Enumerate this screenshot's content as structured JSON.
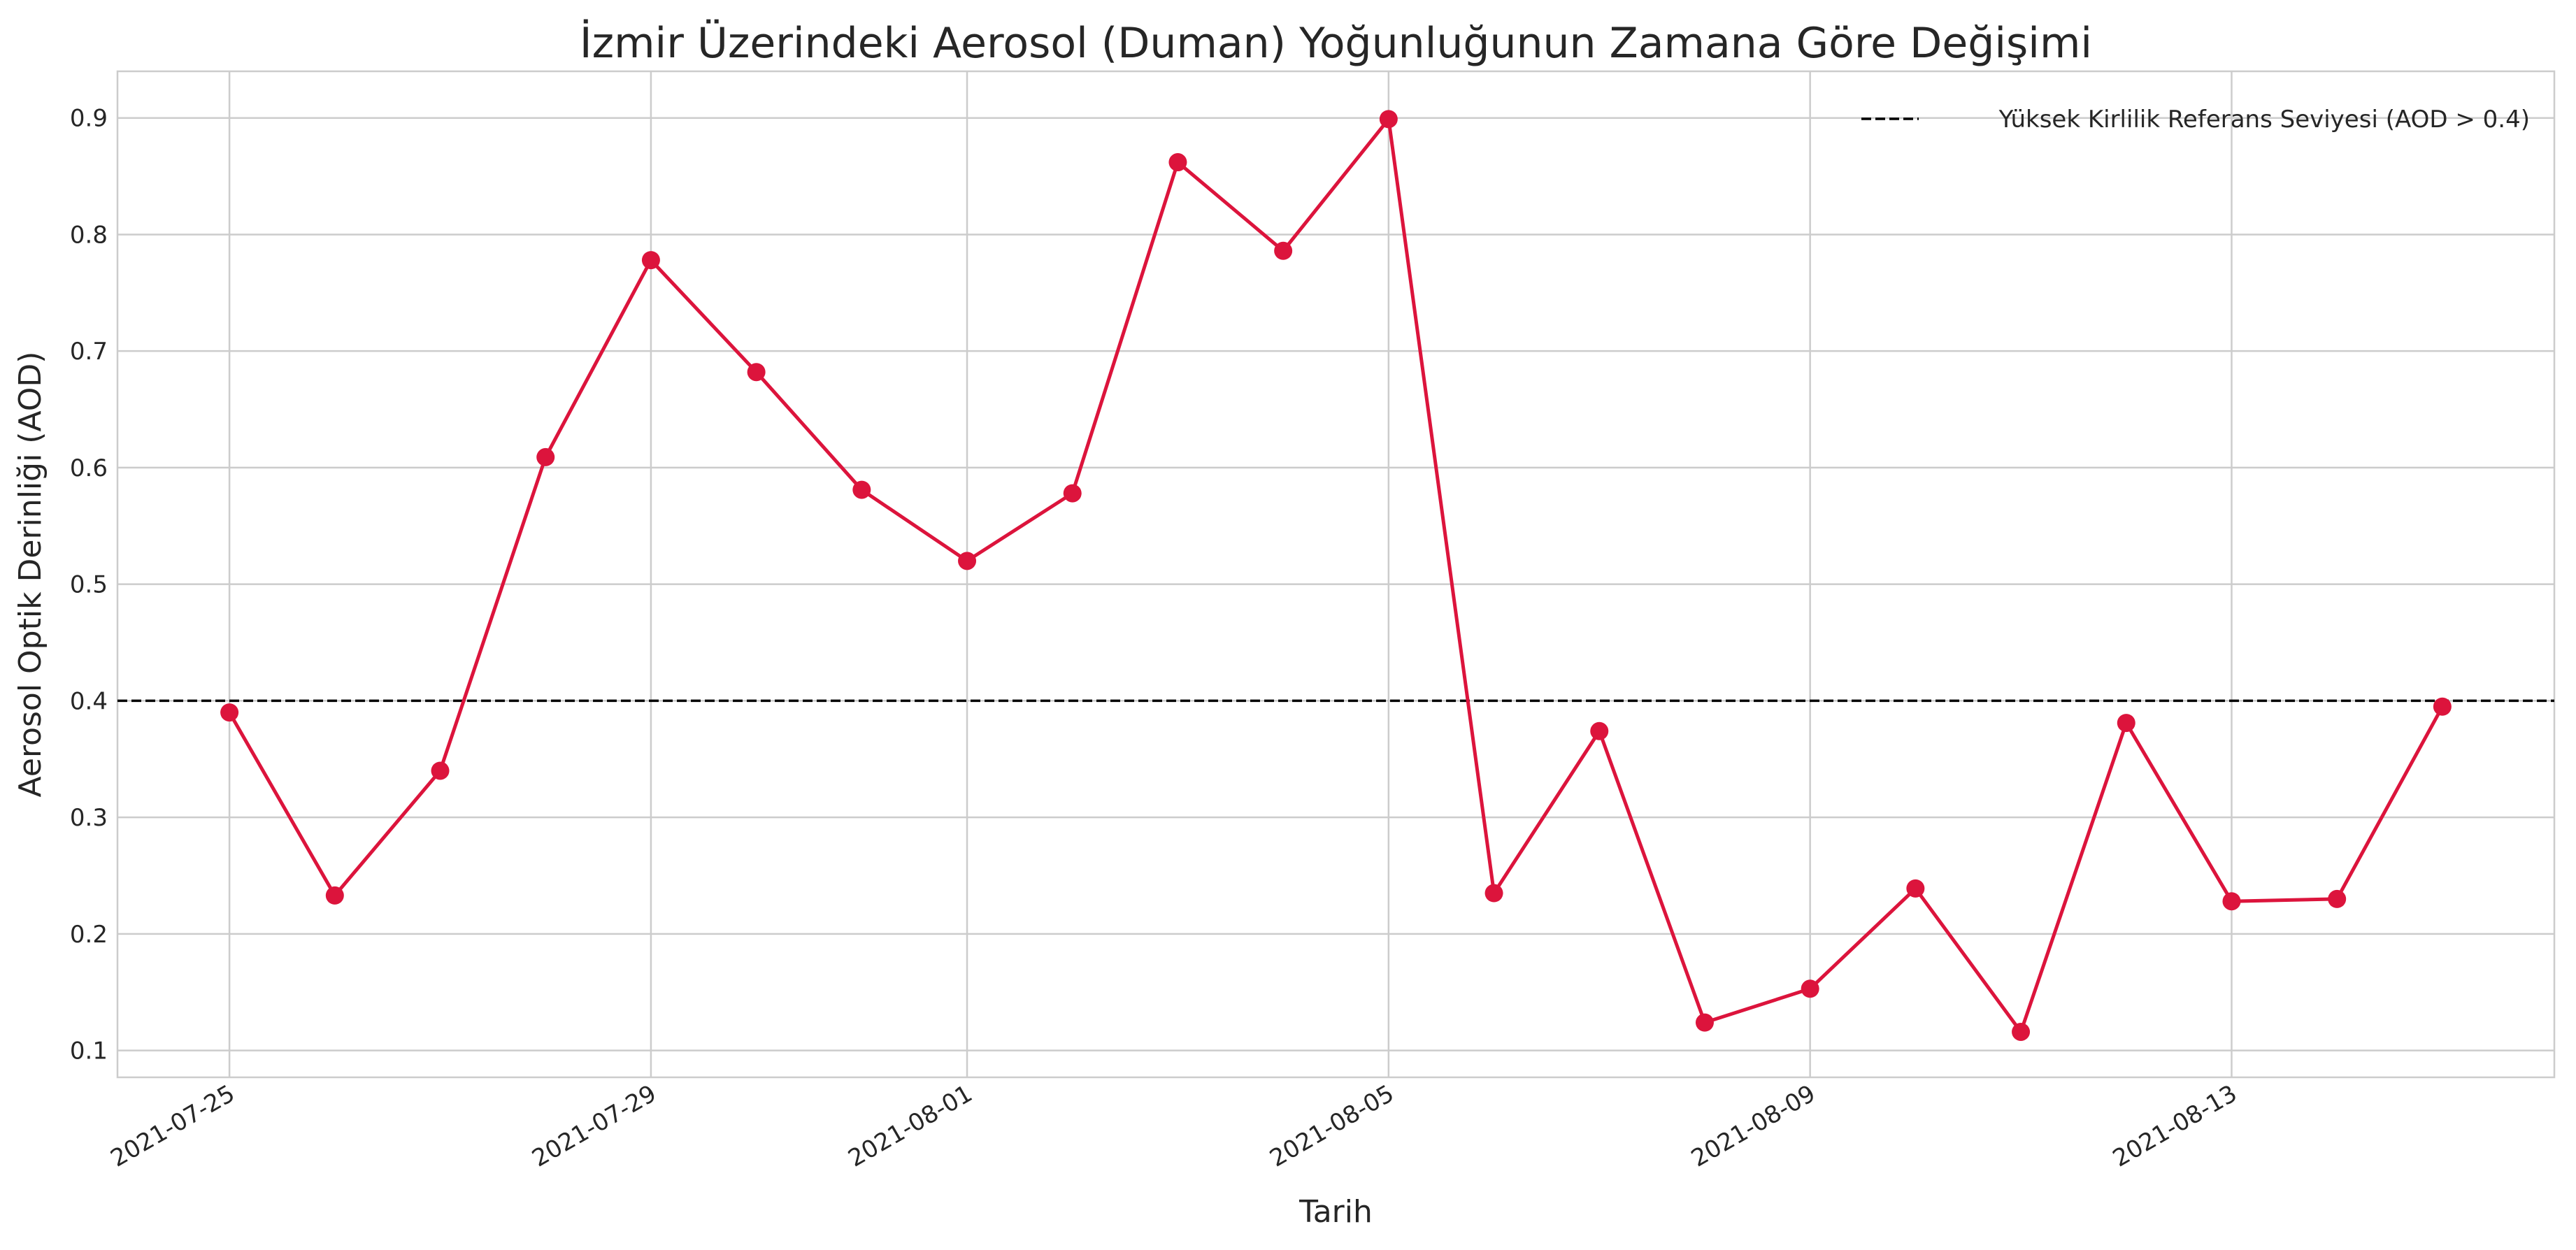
{
  "chart_data": {
    "type": "line",
    "title": "İzmir Üzerindeki Aerosol (Duman) Yoğunluğunun Zamana Göre Değişimi",
    "xlabel": "Tarih",
    "ylabel": "Aerosol Optik Derinliği (AOD)",
    "x_axis": {
      "type": "date",
      "range": [
        "2021-07-23T22:30",
        "2021-08-16T01:30"
      ],
      "tick_labels": [
        "2021-07-25",
        "2021-07-29",
        "2021-08-01",
        "2021-08-05",
        "2021-08-09",
        "2021-08-13"
      ]
    },
    "y_axis": {
      "range": [
        0.077,
        0.94
      ],
      "tick_labels": [
        "0.1",
        "0.2",
        "0.3",
        "0.4",
        "0.5",
        "0.6",
        "0.7",
        "0.8",
        "0.9"
      ]
    },
    "grid": true,
    "legend_placement": "top-right",
    "series": [
      {
        "color": "#dc143c",
        "marker": "circle",
        "points": [
          {
            "x": "2021-07-25",
            "y": 0.39
          },
          {
            "x": "2021-07-26",
            "y": 0.233
          },
          {
            "x": "2021-07-27",
            "y": 0.34
          },
          {
            "x": "2021-07-28",
            "y": 0.609
          },
          {
            "x": "2021-07-29",
            "y": 0.778
          },
          {
            "x": "2021-07-30",
            "y": 0.682
          },
          {
            "x": "2021-07-31",
            "y": 0.581
          },
          {
            "x": "2021-08-01",
            "y": 0.52
          },
          {
            "x": "2021-08-02",
            "y": 0.578
          },
          {
            "x": "2021-08-03",
            "y": 0.862
          },
          {
            "x": "2021-08-04",
            "y": 0.786
          },
          {
            "x": "2021-08-05",
            "y": 0.899
          },
          {
            "x": "2021-08-06",
            "y": 0.235
          },
          {
            "x": "2021-08-07",
            "y": 0.374
          },
          {
            "x": "2021-08-08",
            "y": 0.124
          },
          {
            "x": "2021-08-09",
            "y": 0.153
          },
          {
            "x": "2021-08-10",
            "y": 0.239
          },
          {
            "x": "2021-08-11",
            "y": 0.116
          },
          {
            "x": "2021-08-12",
            "y": 0.381
          },
          {
            "x": "2021-08-13",
            "y": 0.228
          },
          {
            "x": "2021-08-14",
            "y": 0.23
          },
          {
            "x": "2021-08-15",
            "y": 0.395
          }
        ]
      }
    ],
    "reference_line": {
      "y": 0.4,
      "style": "dashed",
      "color": "#000000",
      "label": "Yüksek Kirlilik Referans Seviyesi (AOD > 0.4)"
    }
  }
}
